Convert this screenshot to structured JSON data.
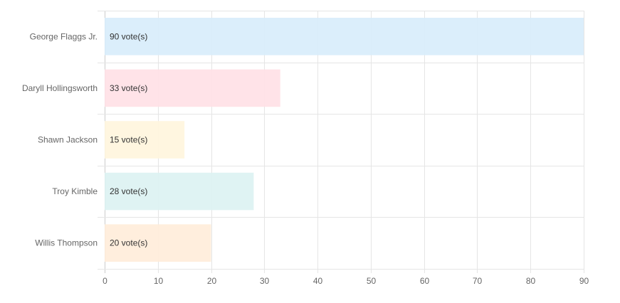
{
  "chart_data": {
    "type": "bar",
    "orientation": "horizontal",
    "title": "",
    "xlabel": "",
    "ylabel": "",
    "categories": [
      "George Flaggs Jr.",
      "Daryll Hollingsworth",
      "Shawn Jackson",
      "Troy Kimble",
      "Willis Thompson"
    ],
    "values": [
      90,
      33,
      15,
      28,
      20
    ],
    "data_labels": [
      "90 vote(s)",
      "33 vote(s)",
      "15 vote(s)",
      "28 vote(s)",
      "20 vote(s)"
    ],
    "colors": [
      "#d7ecfb",
      "#ffe0e6",
      "#fff5dd",
      "#dbf2f2",
      "#ffecd9"
    ],
    "xlim": [
      0,
      90
    ],
    "xticks": [
      "0",
      "10",
      "20",
      "30",
      "40",
      "50",
      "60",
      "70",
      "80",
      "90"
    ],
    "grid": true,
    "legend": "none"
  }
}
